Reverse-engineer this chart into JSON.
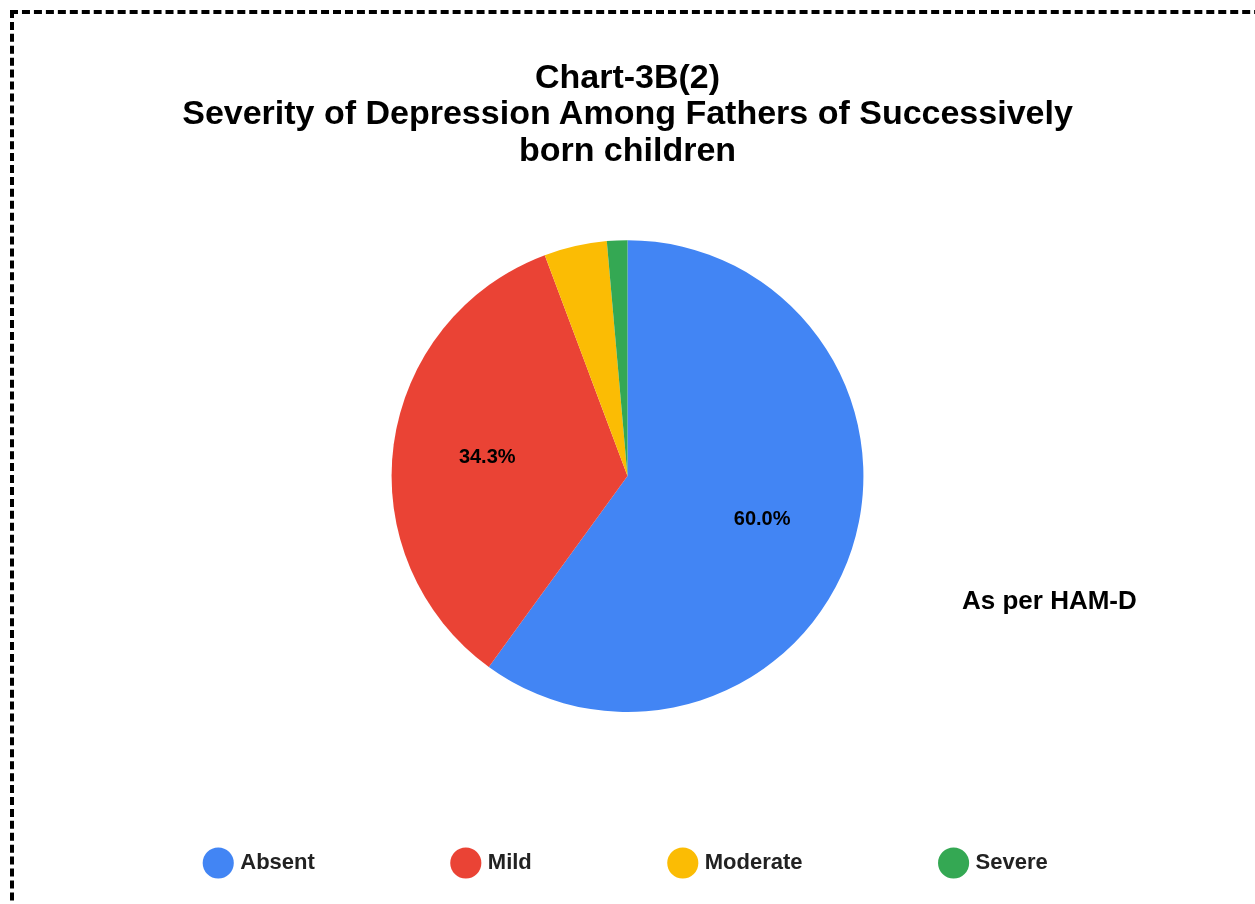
{
  "chart_data": {
    "type": "pie",
    "title": "Chart-3B(2)\nSeverity of Depression Among Fathers of Successively\nborn children",
    "categories": [
      "Absent",
      "Mild",
      "Moderate",
      "Severe"
    ],
    "values": [
      60.0,
      34.3,
      4.3,
      1.4
    ],
    "colors": [
      "#4285f4",
      "#ea4335",
      "#fbbc04",
      "#34a853"
    ],
    "value_labels": [
      "60.0%",
      "34.3%",
      null,
      null
    ],
    "annotations": [
      "As per HAM-D"
    ],
    "legend": "bottom"
  }
}
